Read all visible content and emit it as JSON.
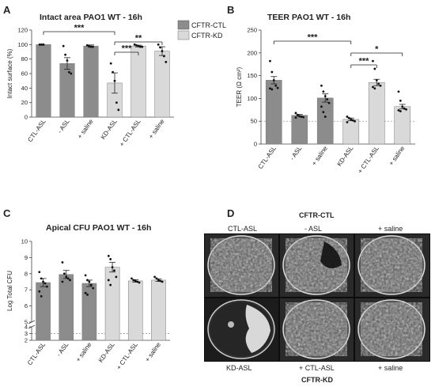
{
  "legend": [
    {
      "label": "CFTR-CTL",
      "color": "#8c8c8c"
    },
    {
      "label": "CFTR-KD",
      "color": "#d9d9d9"
    }
  ],
  "chart_data": [
    {
      "panel": "A",
      "type": "bar",
      "title": "Intact area PAO1 WT - 16h",
      "ylabel": "Intact surface (%)",
      "xlabel": "",
      "ylim": [
        0,
        120
      ],
      "yticks": [
        0,
        20,
        40,
        60,
        80,
        100,
        120
      ],
      "categories": [
        "CTL-ASL",
        "- ASL",
        "+ saline",
        "KD-ASL",
        "+ CTL-ASL",
        "+ saline"
      ],
      "values": [
        100,
        74,
        98,
        47,
        98,
        91
      ],
      "errors": [
        0,
        8,
        1.5,
        14,
        1.2,
        6
      ],
      "group": [
        "CFTR-CTL",
        "CFTR-CTL",
        "CFTR-CTL",
        "CFTR-KD",
        "CFTR-KD",
        "CFTR-KD"
      ],
      "points": [
        [
          100,
          100,
          100
        ],
        [
          98,
          86,
          78,
          62,
          60
        ],
        [
          99,
          98,
          97,
          97
        ],
        [
          74,
          62,
          50,
          20,
          10
        ],
        [
          100,
          99,
          98,
          97,
          97
        ],
        [
          100,
          96,
          91,
          84,
          76
        ]
      ],
      "significance": [
        {
          "from": 0,
          "to": 3,
          "label": "***",
          "level": 0
        },
        {
          "from": 3,
          "to": 5,
          "label": "**",
          "level": 1
        },
        {
          "from": 3,
          "to": 4,
          "label": "***",
          "level": 2
        }
      ]
    },
    {
      "panel": "B",
      "type": "bar",
      "title": "TEER PAO1 WT - 16h",
      "ylabel": "TEER (Ω cm²)",
      "xlabel": "",
      "ylim": [
        0,
        250
      ],
      "yticks": [
        0,
        50,
        100,
        150,
        200,
        250
      ],
      "reference_line": 50,
      "categories": [
        "CTL-ASL",
        "- ASL",
        "+ saline",
        "KD-ASL",
        "+ CTL-ASL",
        "+ saline"
      ],
      "values": [
        140,
        63,
        101,
        54,
        135,
        82
      ],
      "errors": [
        8,
        2,
        9,
        3,
        7,
        5
      ],
      "group": [
        "CFTR-CTL",
        "CFTR-CTL",
        "CFTR-CTL",
        "CFTR-KD",
        "CFTR-KD",
        "CFTR-KD"
      ],
      "points": [
        [
          182,
          158,
          140,
          128,
          123,
          122,
          120
        ],
        [
          68,
          64,
          61,
          60,
          59,
          58
        ],
        [
          128,
          115,
          105,
          98,
          90,
          82,
          70,
          60
        ],
        [
          60,
          57,
          54,
          52,
          50,
          48
        ],
        [
          182,
          165,
          140,
          132,
          128,
          125,
          122
        ],
        [
          115,
          95,
          82,
          78,
          76,
          74,
          72
        ]
      ],
      "significance": [
        {
          "from": 0,
          "to": 3,
          "label": "***",
          "level": 0
        },
        {
          "from": 3,
          "to": 5,
          "label": "*",
          "level": 1
        },
        {
          "from": 3,
          "to": 4,
          "label": "***",
          "level": 2
        }
      ]
    },
    {
      "panel": "C",
      "type": "bar",
      "title": "Apical CFU PAO1  WT - 16h",
      "ylabel": "Log Total CFU",
      "xlabel": "",
      "ylim": [
        2,
        10
      ],
      "yticks": [
        2,
        3,
        4,
        5,
        6,
        7,
        8,
        9,
        10
      ],
      "axis_break": [
        4,
        5
      ],
      "reference_line": 3,
      "categories": [
        "CTL-ASL",
        "- ASL",
        "+ saline",
        "KD-ASL",
        "+ CTL-ASL",
        "+ saline"
      ],
      "values": [
        7.45,
        7.95,
        7.4,
        8.4,
        7.55,
        7.6
      ],
      "errors": [
        0.25,
        0.25,
        0.2,
        0.3,
        0.08,
        0.08
      ],
      "group": [
        "CFTR-CTL",
        "CFTR-CTL",
        "CFTR-CTL",
        "CFTR-KD",
        "CFTR-KD",
        "CFTR-KD"
      ],
      "points": [
        [
          8.1,
          7.7,
          7.5,
          7.4,
          7.2,
          6.9,
          6.6
        ],
        [
          8.7,
          8.0,
          7.8,
          7.7,
          7.6,
          7.5
        ],
        [
          7.9,
          7.6,
          7.5,
          7.3,
          7.1,
          6.8,
          6.7
        ],
        [
          9.1,
          8.9,
          8.4,
          8.2,
          7.8,
          7.6,
          7.3
        ],
        [
          7.7,
          7.6,
          7.55,
          7.5,
          7.45
        ],
        [
          7.8,
          7.7,
          7.6,
          7.55,
          7.5
        ]
      ]
    }
  ],
  "panels": {
    "a": {
      "letter": "A"
    },
    "b": {
      "letter": "B"
    },
    "c": {
      "letter": "C"
    },
    "d": {
      "letter": "D"
    }
  },
  "photo_grid": {
    "top_title": "CFTR-CTL",
    "bottom_title": "CFTR-KD",
    "top_labels": [
      "CTL-ASL",
      "- ASL",
      "+ saline"
    ],
    "bottom_labels": [
      "KD-ASL",
      "+ CTL-ASL",
      "+ saline"
    ]
  }
}
